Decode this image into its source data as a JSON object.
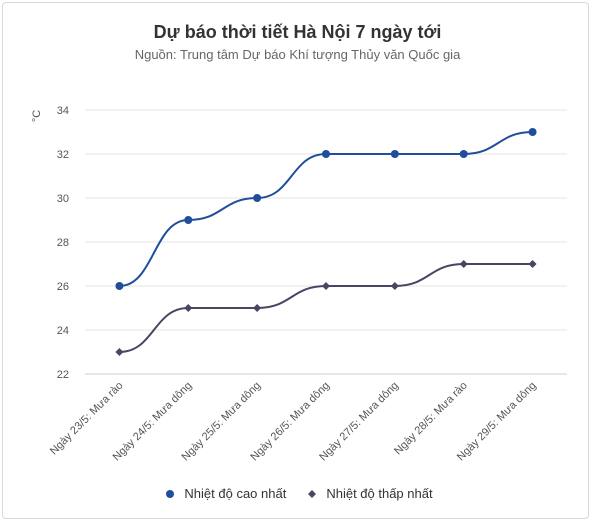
{
  "chart_data": {
    "type": "line",
    "title": "Dự báo thời tiết Hà Nội 7 ngày tới",
    "subtitle": "Nguồn: Trung tâm Dự báo Khí tượng Thủy văn Quốc gia",
    "ylabel": "°C",
    "ylim": [
      22,
      34
    ],
    "yticks": [
      22,
      24,
      26,
      28,
      30,
      32,
      34
    ],
    "categories": [
      "Ngày 23/5: Mưa rào",
      "Ngày 24/5: Mưa dông",
      "Ngày 25/5: Mưa dông",
      "Ngày 26/5: Mưa dông",
      "Ngày 27/5: Mưa dông",
      "Ngày 28/5: Mưa rào",
      "Ngày 29/5: Mưa dông"
    ],
    "series": [
      {
        "name": "Nhiệt độ cao nhất",
        "values": [
          26,
          29,
          30,
          32,
          32,
          32,
          33
        ],
        "color": "#1f4e9c",
        "marker": "circle"
      },
      {
        "name": "Nhiệt độ thấp nhất",
        "values": [
          23,
          25,
          25,
          26,
          26,
          27,
          27
        ],
        "color": "#4a4563",
        "marker": "diamond"
      }
    ],
    "grid": true,
    "legend": "bottom-center"
  }
}
